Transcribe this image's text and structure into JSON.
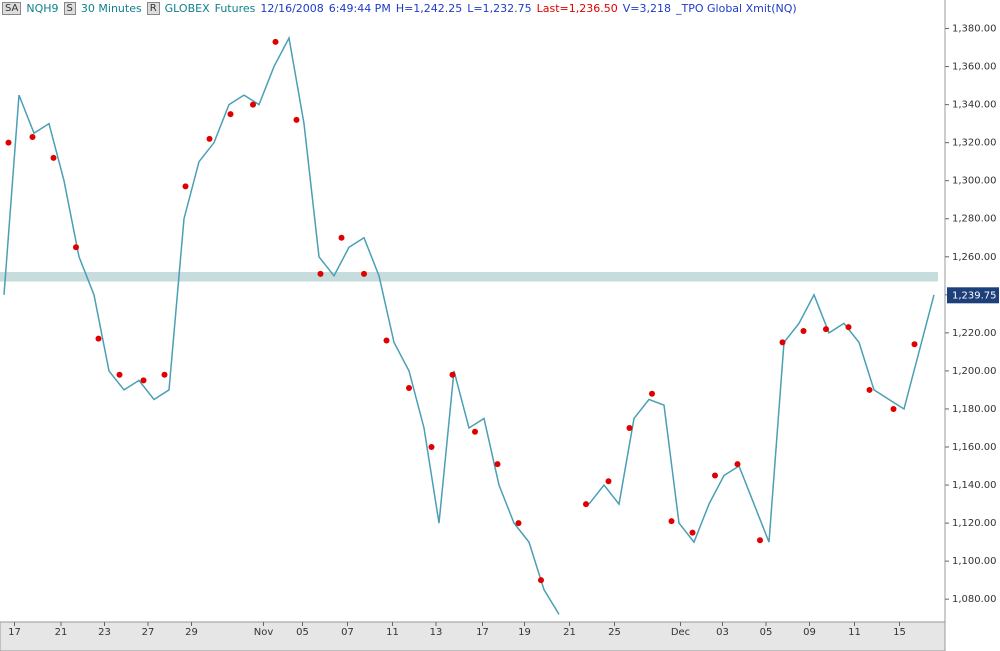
{
  "chart_data": {
    "type": "line",
    "toolbar": [
      "SA",
      "NQH9",
      "S",
      "30 Minutes",
      "R",
      "GLOBEX",
      "Futures",
      "12/16/2008",
      "6:49:44 PM",
      "H=1,242.25",
      "L=1,232.75",
      "Last=1,236.50",
      "V=3,218",
      "_TPO Global Xmit(NQ)"
    ],
    "x": [
      0,
      1,
      2,
      3,
      4,
      5,
      6,
      7,
      8,
      9,
      10,
      11,
      12,
      13,
      14,
      15,
      16,
      17,
      18,
      19,
      20,
      21,
      22,
      23,
      24,
      25,
      26,
      27,
      28,
      29,
      30,
      31,
      32,
      33,
      34,
      35,
      36,
      37,
      38,
      39,
      40,
      41,
      42,
      43,
      44,
      45,
      46,
      47,
      48,
      49,
      50,
      51,
      52,
      53,
      54,
      55,
      56,
      57,
      58,
      59,
      60,
      61,
      62
    ],
    "series": [
      {
        "color": "#4a9fb5",
        "values": [
          1240,
          1345,
          1325,
          1330,
          1300,
          1260,
          1240,
          1200,
          1190,
          1195,
          1185,
          1190,
          1280,
          1310,
          1320,
          1340,
          1345,
          1340,
          1360,
          1375,
          1330,
          1260,
          1250,
          1265,
          1270,
          1250,
          1215,
          1200,
          1170,
          1120,
          1200,
          1170,
          1175,
          1140,
          1120,
          1110,
          1085,
          1072,
          null,
          1130,
          1140,
          1130,
          1175,
          1185,
          1182,
          1120,
          1110,
          1130,
          1145,
          1150,
          1130,
          1110,
          1215,
          1225,
          1240,
          1220,
          1225,
          1215,
          1190,
          1185,
          1180,
          1210,
          1240
        ]
      },
      {
        "type": "scatter",
        "color": "#e00000",
        "x": [
          0.3,
          1.9,
          3.3,
          4.8,
          6.3,
          7.7,
          9.3,
          10.7,
          12.1,
          13.7,
          15.1,
          16.6,
          18.1,
          19.5,
          21.1,
          22.5,
          24,
          25.5,
          27,
          28.5,
          29.9,
          31.4,
          32.9,
          34.3,
          35.8,
          38.8,
          40.3,
          41.7,
          43.2,
          44.5,
          45.9,
          47.4,
          48.9,
          50.4,
          51.9,
          53.3,
          54.8,
          56.3,
          57.7,
          59.3,
          60.7
        ],
        "values": [
          1320,
          1323,
          1312,
          1265,
          1217,
          1198,
          1195,
          1198,
          1297,
          1322,
          1335,
          1340,
          1373,
          1332,
          1251,
          1270,
          1251,
          1216,
          1191,
          1160,
          1198,
          1168,
          1151,
          1120,
          1090,
          1130,
          1142,
          1170,
          1188,
          1121,
          1115,
          1145,
          1151,
          1111,
          1215,
          1221,
          1222,
          1223,
          1190,
          1180,
          1214
        ]
      }
    ],
    "band_ylim": [
      1247,
      1252
    ],
    "last": {
      "value": 1239.75,
      "label": "1,239.75"
    },
    "xlim": [
      0,
      62.4
    ],
    "ylim": [
      1068,
      1395
    ],
    "xticks": [
      {
        "value": 0.7,
        "label": "17"
      },
      {
        "value": 3.8,
        "label": "21"
      },
      {
        "value": 6.7,
        "label": "23"
      },
      {
        "value": 9.6,
        "label": "27"
      },
      {
        "value": 12.5,
        "label": "29"
      },
      {
        "value": 17.3,
        "label": "Nov"
      },
      {
        "value": 19.9,
        "label": "05"
      },
      {
        "value": 22.9,
        "label": "07"
      },
      {
        "value": 25.9,
        "label": "11"
      },
      {
        "value": 28.8,
        "label": "13"
      },
      {
        "value": 31.9,
        "label": "17"
      },
      {
        "value": 34.7,
        "label": "19"
      },
      {
        "value": 37.7,
        "label": "21"
      },
      {
        "value": 40.7,
        "label": "25"
      },
      {
        "value": 45.1,
        "label": "Dec"
      },
      {
        "value": 47.9,
        "label": "03"
      },
      {
        "value": 50.8,
        "label": "05"
      },
      {
        "value": 53.7,
        "label": "09"
      },
      {
        "value": 56.7,
        "label": "11"
      },
      {
        "value": 59.7,
        "label": "15"
      }
    ],
    "yticks": [
      {
        "value": 1080,
        "label": "1,080.00"
      },
      {
        "value": 1100,
        "label": "1,100.00"
      },
      {
        "value": 1120,
        "label": "1,120.00"
      },
      {
        "value": 1140,
        "label": "1,140.00"
      },
      {
        "value": 1160,
        "label": "1,160.00"
      },
      {
        "value": 1180,
        "label": "1,180.00"
      },
      {
        "value": 1200,
        "label": "1,200.00"
      },
      {
        "value": 1220,
        "label": "1,220.00"
      },
      {
        "value": 1240,
        "label": "1,240.00"
      },
      {
        "value": 1260,
        "label": "1,260.00"
      },
      {
        "value": 1280,
        "label": "1,280.00"
      },
      {
        "value": 1300,
        "label": "1,300.00"
      },
      {
        "value": 1320,
        "label": "1,320.00"
      },
      {
        "value": 1340,
        "label": "1,340.00"
      },
      {
        "value": 1360,
        "label": "1,360.00"
      },
      {
        "value": 1380,
        "label": "1,380.00"
      }
    ]
  }
}
